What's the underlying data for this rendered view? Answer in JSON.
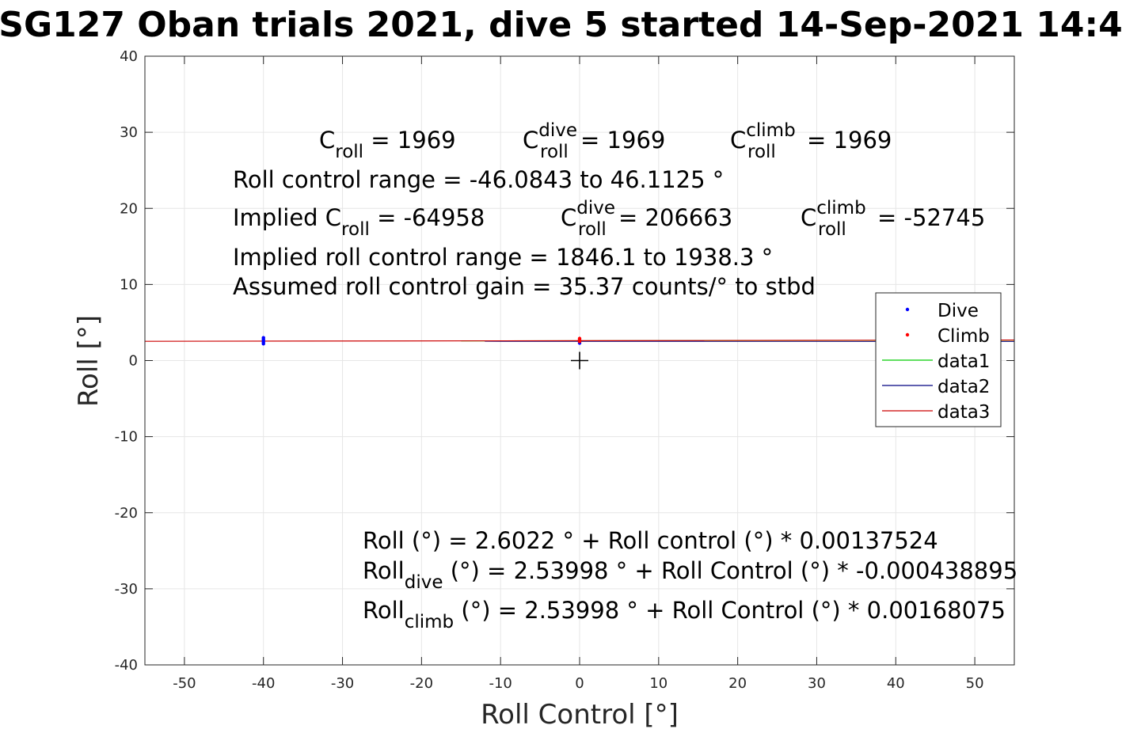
{
  "chart_data": {
    "type": "scatter",
    "title": "SG127 Oban trials 2021, dive 5 started 14-Sep-2021 14:4",
    "xlabel": "Roll Control [°]",
    "ylabel": "Roll [°]",
    "xlim": [
      -55,
      55
    ],
    "ylim": [
      -40,
      40
    ],
    "xticks": [
      -50,
      -40,
      -30,
      -20,
      -10,
      0,
      10,
      20,
      30,
      40,
      50
    ],
    "yticks": [
      -40,
      -30,
      -20,
      -10,
      0,
      10,
      20,
      30,
      40
    ],
    "grid": true,
    "legend_position": "right",
    "legend": [
      "Dive",
      "Climb",
      "data1",
      "data2",
      "data3"
    ],
    "series": [
      {
        "name": "Dive",
        "kind": "points",
        "color": "#0000ff",
        "points": [
          [
            -40,
            2.2
          ],
          [
            -40,
            2.4
          ],
          [
            -40,
            2.6
          ],
          [
            -40,
            2.8
          ],
          [
            -40,
            3.0
          ],
          [
            0,
            2.3
          ],
          [
            0,
            2.5
          ],
          [
            0,
            2.7
          ]
        ]
      },
      {
        "name": "Climb",
        "kind": "points",
        "color": "#ff0000",
        "points": [
          [
            0,
            2.5
          ],
          [
            0,
            2.7
          ],
          [
            0,
            2.9
          ]
        ]
      },
      {
        "name": "data1",
        "kind": "line",
        "color": "#00cc00",
        "x": [
          -15,
          55
        ],
        "y": [
          2.58,
          2.67
        ]
      },
      {
        "name": "data2",
        "kind": "line",
        "color": "#000080",
        "x": [
          -12,
          55
        ],
        "y": [
          2.54,
          2.52
        ]
      },
      {
        "name": "data3",
        "kind": "line",
        "color": "#cc0000",
        "x": [
          -55,
          55
        ],
        "y": [
          2.53,
          2.69
        ]
      }
    ],
    "marker": {
      "type": "plus",
      "x": 0,
      "y": 0
    }
  },
  "annotations": {
    "c_roll_label": "C",
    "c_roll_sub": "roll",
    "c_roll_value": " = 1969",
    "c_dive_label": "C",
    "c_dive_sup": "dive",
    "c_dive_sub": "roll",
    "c_dive_value": " = 1969",
    "c_climb_label": "C",
    "c_climb_sup": "climb",
    "c_climb_sub": "roll",
    "c_climb_value": " = 1969",
    "range_line": "Roll control range = -46.0843 to 46.1125 °",
    "implied_c_prefix": "Implied C",
    "implied_c_sub": "roll",
    "implied_c_value": " = -64958",
    "implied_dive_label": "C",
    "implied_dive_sup": "dive",
    "implied_dive_sub": "roll",
    "implied_dive_value": " = 206663",
    "implied_climb_label": "C",
    "implied_climb_sup": "climb",
    "implied_climb_sub": "roll",
    "implied_climb_value": " = -52745",
    "implied_range_line": "Implied roll control range = 1846.1 to 1938.3 °",
    "gain_line": "Assumed roll control gain = 35.37 counts/° to stbd",
    "fit_line": "Roll (°) = 2.6022 ° + Roll control (°) * 0.00137524",
    "fit_dive_label": "Roll",
    "fit_dive_sub": "dive",
    "fit_dive_rest": " (°) = 2.53998 ° + Roll Control (°) * -0.000438895",
    "fit_climb_label": "Roll",
    "fit_climb_sub": "climb",
    "fit_climb_rest": " (°) = 2.53998 ° + Roll Control (°) * 0.00168075"
  }
}
